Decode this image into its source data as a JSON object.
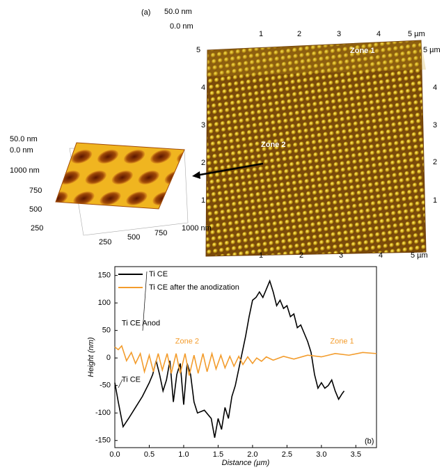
{
  "panel_a": {
    "label": "(a)",
    "large_image": {
      "z_max": "50.0 nm",
      "z_min": "0.0 nm",
      "top_ticks": [
        "1",
        "2",
        "3",
        "4",
        "5 µm"
      ],
      "right_ticks": [
        "5 µm",
        "4",
        "3",
        "2",
        "1"
      ],
      "left_ticks": [
        "5",
        "4",
        "3",
        "2",
        "1"
      ],
      "bottom_ticks": [
        "1",
        "2",
        "3",
        "4",
        "5 µm"
      ],
      "zone_1": "Zone 1",
      "zone_2": "Zone 2"
    },
    "small_image": {
      "z_max": "50.0 nm",
      "z_min": "0.0 nm",
      "y_ticks": [
        "1000 nm",
        "750",
        "500",
        "250"
      ],
      "x_ticks": [
        "250",
        "500",
        "750",
        "1000 nm"
      ]
    }
  },
  "chart_data": {
    "type": "line",
    "panel_label": "(b)",
    "x_label": "Distance (µm)",
    "y_label": "Height (nm)",
    "xlim": [
      0,
      3.8
    ],
    "ylim": [
      -163,
      166
    ],
    "xticks": [
      {
        "value": 0,
        "label": "0.0"
      },
      0.5,
      {
        "value": 1,
        "label": "1.0"
      },
      1.5,
      {
        "value": 2,
        "label": "2.0"
      },
      2.5,
      {
        "value": 3,
        "label": "3.0"
      },
      3.5
    ],
    "yticks": [
      -150,
      -100,
      -50,
      0,
      50,
      100,
      150
    ],
    "annotations": [
      {
        "text": "Ti CE Anod",
        "x": 0.1,
        "y": 63
      },
      {
        "text": "Ti CE",
        "x": 0.1,
        "y": -40
      },
      {
        "text": "Zone 2",
        "x": 1.05,
        "y": 30
      },
      {
        "text": "Zone 1",
        "x": 3.3,
        "y": 30
      }
    ],
    "series": [
      {
        "name": "Ti CE",
        "color": "#000000",
        "x": [
          0,
          0.05,
          0.12,
          0.2,
          0.3,
          0.4,
          0.5,
          0.55,
          0.6,
          0.65,
          0.7,
          0.75,
          0.8,
          0.85,
          0.9,
          0.95,
          1.0,
          1.05,
          1.1,
          1.15,
          1.2,
          1.3,
          1.4,
          1.45,
          1.5,
          1.55,
          1.6,
          1.65,
          1.7,
          1.75,
          1.8,
          1.85,
          1.9,
          1.95,
          2.0,
          2.05,
          2.1,
          2.15,
          2.2,
          2.25,
          2.3,
          2.35,
          2.4,
          2.45,
          2.5,
          2.55,
          2.6,
          2.65,
          2.7,
          2.75,
          2.8,
          2.85,
          2.9,
          2.95,
          3.0,
          3.05,
          3.1,
          3.15,
          3.2,
          3.25,
          3.3,
          3.33
        ],
        "values": [
          -45,
          -80,
          -125,
          -110,
          -90,
          -70,
          -45,
          -30,
          -5,
          -30,
          -60,
          -40,
          -5,
          -80,
          -30,
          -10,
          -85,
          -10,
          -30,
          -80,
          -100,
          -95,
          -110,
          -145,
          -110,
          -130,
          -90,
          -110,
          -70,
          -50,
          -20,
          10,
          40,
          75,
          105,
          110,
          120,
          110,
          125,
          140,
          120,
          95,
          105,
          90,
          95,
          75,
          80,
          55,
          60,
          45,
          30,
          10,
          -30,
          -55,
          -45,
          -55,
          -50,
          -40,
          -60,
          -75,
          -65,
          -60
        ]
      },
      {
        "name": "Ti CE after the anodization",
        "color": "#f39c2c",
        "x": [
          0,
          0.05,
          0.1,
          0.17,
          0.24,
          0.3,
          0.37,
          0.43,
          0.5,
          0.56,
          0.63,
          0.69,
          0.76,
          0.82,
          0.89,
          0.95,
          1.02,
          1.08,
          1.15,
          1.21,
          1.28,
          1.34,
          1.41,
          1.47,
          1.54,
          1.6,
          1.67,
          1.73,
          1.8,
          1.86,
          1.93,
          2.0,
          2.06,
          2.13,
          2.2,
          2.3,
          2.45,
          2.6,
          2.8,
          3.0,
          3.2,
          3.4,
          3.6,
          3.8
        ],
        "values": [
          20,
          15,
          22,
          -5,
          10,
          -10,
          8,
          -25,
          5,
          -25,
          8,
          -22,
          8,
          -28,
          8,
          -28,
          8,
          -32,
          5,
          -28,
          8,
          -25,
          8,
          -20,
          5,
          -18,
          3,
          -15,
          3,
          -12,
          2,
          -10,
          0,
          -6,
          2,
          -4,
          3,
          -2,
          5,
          2,
          8,
          5,
          10,
          8
        ]
      }
    ]
  }
}
